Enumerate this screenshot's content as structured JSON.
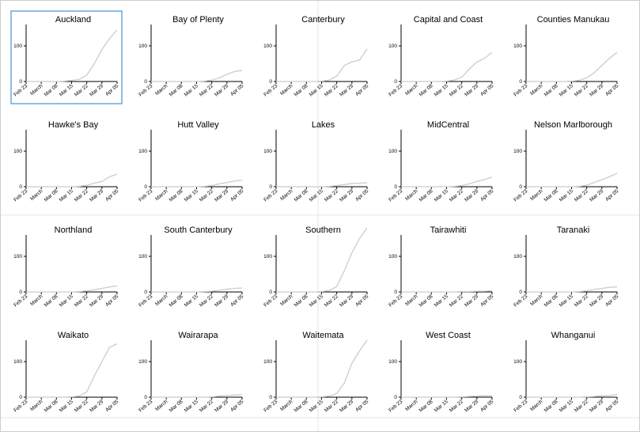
{
  "chart_data": [
    {
      "type": "line",
      "title": "Auckland",
      "x": [
        "Feb 23",
        "Feb 26",
        "Mar 01",
        "Mar 04",
        "Mar 08",
        "Mar 11",
        "Mar 15",
        "Mar 18",
        "Mar 22",
        "Mar 25",
        "Mar 29",
        "Apr 01",
        "Apr 05"
      ],
      "values": [
        0,
        0,
        0,
        0,
        0,
        1,
        3,
        6,
        18,
        50,
        90,
        120,
        145
      ],
      "color": "#cccccc",
      "ylim": [
        0,
        160
      ],
      "yticks": [
        0,
        100
      ],
      "xticks": [
        "Feb 23",
        {
          "value": "Mar 01",
          "label": "March"
        },
        "Mar 08",
        "Mar 15",
        "Mar 22",
        "Mar 29",
        "Apr 05"
      ]
    },
    {
      "type": "line",
      "title": "Bay of Plenty",
      "x": [
        "Feb 23",
        "Feb 26",
        "Mar 01",
        "Mar 04",
        "Mar 08",
        "Mar 11",
        "Mar 15",
        "Mar 18",
        "Mar 22",
        "Mar 25",
        "Mar 29",
        "Apr 01",
        "Apr 05"
      ],
      "values": [
        0,
        0,
        0,
        0,
        0,
        0,
        0,
        1,
        4,
        10,
        20,
        28,
        31
      ],
      "color": "#cccccc",
      "ylim": [
        0,
        160
      ],
      "yticks": [
        0,
        100
      ],
      "xticks": [
        "Feb 23",
        {
          "value": "Mar 01",
          "label": "March"
        },
        "Mar 08",
        "Mar 15",
        "Mar 22",
        "Mar 29",
        "Apr 05"
      ]
    },
    {
      "type": "line",
      "title": "Canterbury",
      "x": [
        "Feb 23",
        "Feb 26",
        "Mar 01",
        "Mar 04",
        "Mar 08",
        "Mar 11",
        "Mar 15",
        "Mar 18",
        "Mar 22",
        "Mar 25",
        "Mar 29",
        "Apr 01",
        "Apr 05"
      ],
      "values": [
        0,
        0,
        0,
        0,
        0,
        0,
        1,
        4,
        15,
        45,
        55,
        60,
        92
      ],
      "color": "#cccccc",
      "ylim": [
        0,
        160
      ],
      "yticks": [
        0,
        100
      ],
      "xticks": [
        "Feb 23",
        {
          "value": "Mar 01",
          "label": "March"
        },
        "Mar 08",
        "Mar 15",
        "Mar 22",
        "Mar 29",
        "Apr 05"
      ]
    },
    {
      "type": "line",
      "title": "Capital and Coast",
      "x": [
        "Feb 23",
        "Feb 26",
        "Mar 01",
        "Mar 04",
        "Mar 08",
        "Mar 11",
        "Mar 15",
        "Mar 18",
        "Mar 22",
        "Mar 25",
        "Mar 29",
        "Apr 01",
        "Apr 05"
      ],
      "values": [
        0,
        0,
        0,
        0,
        0,
        0,
        1,
        4,
        12,
        35,
        55,
        65,
        82
      ],
      "color": "#cccccc",
      "ylim": [
        0,
        160
      ],
      "yticks": [
        0,
        100
      ],
      "xticks": [
        "Feb 23",
        {
          "value": "Mar 01",
          "label": "March"
        },
        "Mar 08",
        "Mar 15",
        "Mar 22",
        "Mar 29",
        "Apr 05"
      ]
    },
    {
      "type": "line",
      "title": "Counties Manukau",
      "x": [
        "Feb 23",
        "Feb 26",
        "Mar 01",
        "Mar 04",
        "Mar 08",
        "Mar 11",
        "Mar 15",
        "Mar 18",
        "Mar 22",
        "Mar 25",
        "Mar 29",
        "Apr 01",
        "Apr 05"
      ],
      "values": [
        0,
        0,
        0,
        0,
        0,
        0,
        1,
        3,
        10,
        25,
        45,
        65,
        82
      ],
      "color": "#cccccc",
      "ylim": [
        0,
        160
      ],
      "yticks": [
        0,
        100
      ],
      "xticks": [
        "Feb 23",
        {
          "value": "Mar 01",
          "label": "March"
        },
        "Mar 08",
        "Mar 15",
        "Mar 22",
        "Mar 29",
        "Apr 05"
      ]
    },
    {
      "type": "line",
      "title": "Hawke's Bay",
      "x": [
        "Feb 23",
        "Feb 26",
        "Mar 01",
        "Mar 04",
        "Mar 08",
        "Mar 11",
        "Mar 15",
        "Mar 18",
        "Mar 22",
        "Mar 25",
        "Mar 29",
        "Apr 01",
        "Apr 05"
      ],
      "values": [
        0,
        0,
        0,
        0,
        0,
        0,
        0,
        1,
        4,
        10,
        15,
        28,
        35
      ],
      "color": "#cccccc",
      "ylim": [
        0,
        160
      ],
      "yticks": [
        0,
        100
      ],
      "xticks": [
        "Feb 23",
        {
          "value": "Mar 01",
          "label": "March"
        },
        "Mar 08",
        "Mar 15",
        "Mar 22",
        "Mar 29",
        "Apr 05"
      ]
    },
    {
      "type": "line",
      "title": "Hutt Valley",
      "x": [
        "Feb 23",
        "Feb 26",
        "Mar 01",
        "Mar 04",
        "Mar 08",
        "Mar 11",
        "Mar 15",
        "Mar 18",
        "Mar 22",
        "Mar 25",
        "Mar 29",
        "Apr 01",
        "Apr 05"
      ],
      "values": [
        0,
        0,
        0,
        0,
        0,
        0,
        0,
        1,
        3,
        8,
        12,
        16,
        18
      ],
      "color": "#cccccc",
      "ylim": [
        0,
        160
      ],
      "yticks": [
        0,
        100
      ],
      "xticks": [
        "Feb 23",
        {
          "value": "Mar 01",
          "label": "March"
        },
        "Mar 08",
        "Mar 15",
        "Mar 22",
        "Mar 29",
        "Apr 05"
      ]
    },
    {
      "type": "line",
      "title": "Lakes",
      "x": [
        "Feb 23",
        "Feb 26",
        "Mar 01",
        "Mar 04",
        "Mar 08",
        "Mar 11",
        "Mar 15",
        "Mar 18",
        "Mar 22",
        "Mar 25",
        "Mar 29",
        "Apr 01",
        "Apr 05"
      ],
      "values": [
        0,
        0,
        0,
        0,
        0,
        0,
        0,
        1,
        3,
        6,
        9,
        10,
        11
      ],
      "color": "#cccccc",
      "ylim": [
        0,
        160
      ],
      "yticks": [
        0,
        100
      ],
      "xticks": [
        "Feb 23",
        {
          "value": "Mar 01",
          "label": "March"
        },
        "Mar 08",
        "Mar 15",
        "Mar 22",
        "Mar 29",
        "Apr 05"
      ]
    },
    {
      "type": "line",
      "title": "MidCentral",
      "x": [
        "Feb 23",
        "Feb 26",
        "Mar 01",
        "Mar 04",
        "Mar 08",
        "Mar 11",
        "Mar 15",
        "Mar 18",
        "Mar 22",
        "Mar 25",
        "Mar 29",
        "Apr 01",
        "Apr 05"
      ],
      "values": [
        0,
        0,
        0,
        0,
        0,
        0,
        0,
        1,
        3,
        8,
        15,
        20,
        27
      ],
      "color": "#cccccc",
      "ylim": [
        0,
        160
      ],
      "yticks": [
        0,
        100
      ],
      "xticks": [
        "Feb 23",
        {
          "value": "Mar 01",
          "label": "March"
        },
        "Mar 08",
        "Mar 15",
        "Mar 22",
        "Mar 29",
        "Apr 05"
      ]
    },
    {
      "type": "line",
      "title": "Nelson Marlborough",
      "x": [
        "Feb 23",
        "Feb 26",
        "Mar 01",
        "Mar 04",
        "Mar 08",
        "Mar 11",
        "Mar 15",
        "Mar 18",
        "Mar 22",
        "Mar 25",
        "Mar 29",
        "Apr 01",
        "Apr 05"
      ],
      "values": [
        0,
        0,
        0,
        0,
        0,
        0,
        0,
        1,
        4,
        12,
        20,
        28,
        38
      ],
      "color": "#cccccc",
      "ylim": [
        0,
        160
      ],
      "yticks": [
        0,
        100
      ],
      "xticks": [
        "Feb 23",
        {
          "value": "Mar 01",
          "label": "March"
        },
        "Mar 08",
        "Mar 15",
        "Mar 22",
        "Mar 29",
        "Apr 05"
      ]
    },
    {
      "type": "line",
      "title": "Northland",
      "x": [
        "Feb 23",
        "Feb 26",
        "Mar 01",
        "Mar 04",
        "Mar 08",
        "Mar 11",
        "Mar 15",
        "Mar 18",
        "Mar 22",
        "Mar 25",
        "Mar 29",
        "Apr 01",
        "Apr 05"
      ],
      "values": [
        0,
        0,
        0,
        0,
        0,
        0,
        0,
        1,
        3,
        6,
        10,
        14,
        17
      ],
      "color": "#cccccc",
      "ylim": [
        0,
        160
      ],
      "yticks": [
        0,
        100
      ],
      "xticks": [
        "Feb 23",
        {
          "value": "Mar 01",
          "label": "March"
        },
        "Mar 08",
        "Mar 15",
        "Mar 22",
        "Mar 29",
        "Apr 05"
      ]
    },
    {
      "type": "line",
      "title": "South Canterbury",
      "x": [
        "Feb 23",
        "Feb 26",
        "Mar 01",
        "Mar 04",
        "Mar 08",
        "Mar 11",
        "Mar 15",
        "Mar 18",
        "Mar 22",
        "Mar 25",
        "Mar 29",
        "Apr 01",
        "Apr 05"
      ],
      "values": [
        0,
        0,
        0,
        0,
        0,
        0,
        0,
        1,
        2,
        5,
        8,
        10,
        11
      ],
      "color": "#cccccc",
      "ylim": [
        0,
        160
      ],
      "yticks": [
        0,
        100
      ],
      "xticks": [
        "Feb 23",
        {
          "value": "Mar 01",
          "label": "March"
        },
        "Mar 08",
        "Mar 15",
        "Mar 22",
        "Mar 29",
        "Apr 05"
      ]
    },
    {
      "type": "line",
      "title": "Southern",
      "x": [
        "Feb 23",
        "Feb 26",
        "Mar 01",
        "Mar 04",
        "Mar 08",
        "Mar 11",
        "Mar 15",
        "Mar 18",
        "Mar 22",
        "Mar 25",
        "Mar 29",
        "Apr 01",
        "Apr 05"
      ],
      "values": [
        0,
        0,
        0,
        0,
        0,
        0,
        1,
        4,
        15,
        60,
        110,
        150,
        180
      ],
      "color": "#cccccc",
      "ylim": [
        0,
        160
      ],
      "yticks": [
        0,
        100
      ],
      "xticks": [
        "Feb 23",
        {
          "value": "Mar 01",
          "label": "March"
        },
        "Mar 08",
        "Mar 15",
        "Mar 22",
        "Mar 29",
        "Apr 05"
      ]
    },
    {
      "type": "line",
      "title": "Tairawhiti",
      "x": [
        "Feb 23",
        "Feb 26",
        "Mar 01",
        "Mar 04",
        "Mar 08",
        "Mar 11",
        "Mar 15",
        "Mar 18",
        "Mar 22",
        "Mar 25",
        "Mar 29",
        "Apr 01",
        "Apr 05"
      ],
      "values": [
        0,
        0,
        0,
        0,
        0,
        0,
        0,
        0,
        1,
        1,
        2,
        2,
        3
      ],
      "color": "#cccccc",
      "ylim": [
        0,
        160
      ],
      "yticks": [
        0,
        100
      ],
      "xticks": [
        "Feb 23",
        {
          "value": "Mar 01",
          "label": "March"
        },
        "Mar 08",
        "Mar 15",
        "Mar 22",
        "Mar 29",
        "Apr 05"
      ]
    },
    {
      "type": "line",
      "title": "Taranaki",
      "x": [
        "Feb 23",
        "Feb 26",
        "Mar 01",
        "Mar 04",
        "Mar 08",
        "Mar 11",
        "Mar 15",
        "Mar 18",
        "Mar 22",
        "Mar 25",
        "Mar 29",
        "Apr 01",
        "Apr 05"
      ],
      "values": [
        0,
        0,
        0,
        0,
        0,
        0,
        0,
        1,
        3,
        7,
        10,
        13,
        14
      ],
      "color": "#cccccc",
      "ylim": [
        0,
        160
      ],
      "yticks": [
        0,
        100
      ],
      "xticks": [
        "Feb 23",
        {
          "value": "Mar 01",
          "label": "March"
        },
        "Mar 08",
        "Mar 15",
        "Mar 22",
        "Mar 29",
        "Apr 05"
      ]
    },
    {
      "type": "line",
      "title": "Waikato",
      "x": [
        "Feb 23",
        "Feb 26",
        "Mar 01",
        "Mar 04",
        "Mar 08",
        "Mar 11",
        "Mar 15",
        "Mar 18",
        "Mar 22",
        "Mar 25",
        "Mar 29",
        "Apr 01",
        "Apr 05"
      ],
      "values": [
        0,
        0,
        0,
        0,
        0,
        0,
        1,
        3,
        15,
        60,
        100,
        140,
        150
      ],
      "color": "#cccccc",
      "ylim": [
        0,
        160
      ],
      "yticks": [
        0,
        100
      ],
      "xticks": [
        "Feb 23",
        {
          "value": "Mar 01",
          "label": "March"
        },
        "Mar 08",
        "Mar 15",
        "Mar 22",
        "Mar 29",
        "Apr 05"
      ]
    },
    {
      "type": "line",
      "title": "Wairarapa",
      "x": [
        "Feb 23",
        "Feb 26",
        "Mar 01",
        "Mar 04",
        "Mar 08",
        "Mar 11",
        "Mar 15",
        "Mar 18",
        "Mar 22",
        "Mar 25",
        "Mar 29",
        "Apr 01",
        "Apr 05"
      ],
      "values": [
        0,
        0,
        0,
        0,
        0,
        0,
        0,
        0,
        1,
        3,
        5,
        6,
        7
      ],
      "color": "#cccccc",
      "ylim": [
        0,
        160
      ],
      "yticks": [
        0,
        100
      ],
      "xticks": [
        "Feb 23",
        {
          "value": "Mar 01",
          "label": "March"
        },
        "Mar 08",
        "Mar 15",
        "Mar 22",
        "Mar 29",
        "Apr 05"
      ]
    },
    {
      "type": "line",
      "title": "Waitemata",
      "x": [
        "Feb 23",
        "Feb 26",
        "Mar 01",
        "Mar 04",
        "Mar 08",
        "Mar 11",
        "Mar 15",
        "Mar 18",
        "Mar 22",
        "Mar 25",
        "Mar 29",
        "Apr 01",
        "Apr 05"
      ],
      "values": [
        0,
        0,
        0,
        0,
        0,
        0,
        1,
        3,
        10,
        40,
        95,
        130,
        160
      ],
      "color": "#cccccc",
      "ylim": [
        0,
        160
      ],
      "yticks": [
        0,
        100
      ],
      "xticks": [
        "Feb 23",
        {
          "value": "Mar 01",
          "label": "March"
        },
        "Mar 08",
        "Mar 15",
        "Mar 22",
        "Mar 29",
        "Apr 05"
      ]
    },
    {
      "type": "line",
      "title": "West Coast",
      "x": [
        "Feb 23",
        "Feb 26",
        "Mar 01",
        "Mar 04",
        "Mar 08",
        "Mar 11",
        "Mar 15",
        "Mar 18",
        "Mar 22",
        "Mar 25",
        "Mar 29",
        "Apr 01",
        "Apr 05"
      ],
      "values": [
        0,
        0,
        0,
        0,
        0,
        0,
        0,
        0,
        1,
        2,
        3,
        4,
        4
      ],
      "color": "#cccccc",
      "ylim": [
        0,
        160
      ],
      "yticks": [
        0,
        100
      ],
      "xticks": [
        "Feb 23",
        {
          "value": "Mar 01",
          "label": "March"
        },
        "Mar 08",
        "Mar 15",
        "Mar 22",
        "Mar 29",
        "Apr 05"
      ]
    },
    {
      "type": "line",
      "title": "Whanganui",
      "x": [
        "Feb 23",
        "Feb 26",
        "Mar 01",
        "Mar 04",
        "Mar 08",
        "Mar 11",
        "Mar 15",
        "Mar 18",
        "Mar 22",
        "Mar 25",
        "Mar 29",
        "Apr 01",
        "Apr 05"
      ],
      "values": [
        0,
        0,
        0,
        0,
        0,
        0,
        0,
        0,
        1,
        2,
        4,
        5,
        8
      ],
      "color": "#cccccc",
      "ylim": [
        0,
        160
      ],
      "yticks": [
        0,
        100
      ],
      "xticks": [
        "Feb 23",
        {
          "value": "Mar 01",
          "label": "March"
        },
        "Mar 08",
        "Mar 15",
        "Mar 22",
        "Mar 29",
        "Apr 05"
      ]
    }
  ]
}
